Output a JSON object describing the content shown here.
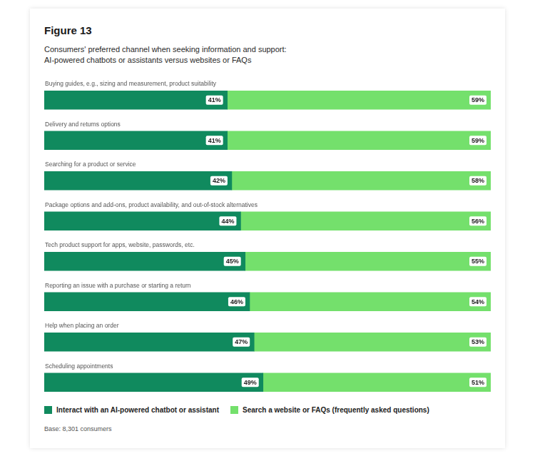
{
  "chart_data": {
    "type": "bar",
    "title": "Figure 13",
    "subtitle": "Consumers' preferred channel when seeking information and support:\nAI-powered chatbots or assistants versus websites or FAQs",
    "orientation": "horizontal",
    "stacked": true,
    "data_labels": true,
    "tick_labels": false,
    "legend": "bottom",
    "xlim": [
      0,
      100
    ],
    "categories": [
      "Buying guides, e.g., sizing and measurement, product suitability",
      "Delivery and returns options",
      "Searching for a product or service",
      "Package options and add-ons, product availability, and out-of-stock alternatives",
      "Tech product support for apps, website, passwords, etc.",
      "Reporting an issue with a purchase or starting a return",
      "Help when placing an order",
      "Scheduling appointments"
    ],
    "series": [
      {
        "name": "Interact with an AI-powered chatbot or assistant",
        "color": "#108a5e",
        "values": [
          41,
          41,
          42,
          44,
          45,
          46,
          47,
          49
        ],
        "value_labels": [
          "41%",
          "41%",
          "42%",
          "44%",
          "45%",
          "46%",
          "47%",
          "49%"
        ]
      },
      {
        "name": "Search a website or FAQs (frequently asked questions)",
        "color": "#74e06c",
        "values": [
          59,
          59,
          58,
          56,
          55,
          54,
          53,
          51
        ],
        "value_labels": [
          "59%",
          "59%",
          "58%",
          "56%",
          "55%",
          "54%",
          "53%",
          "51%"
        ]
      }
    ],
    "footnote": "Base: 8,301 consumers"
  }
}
